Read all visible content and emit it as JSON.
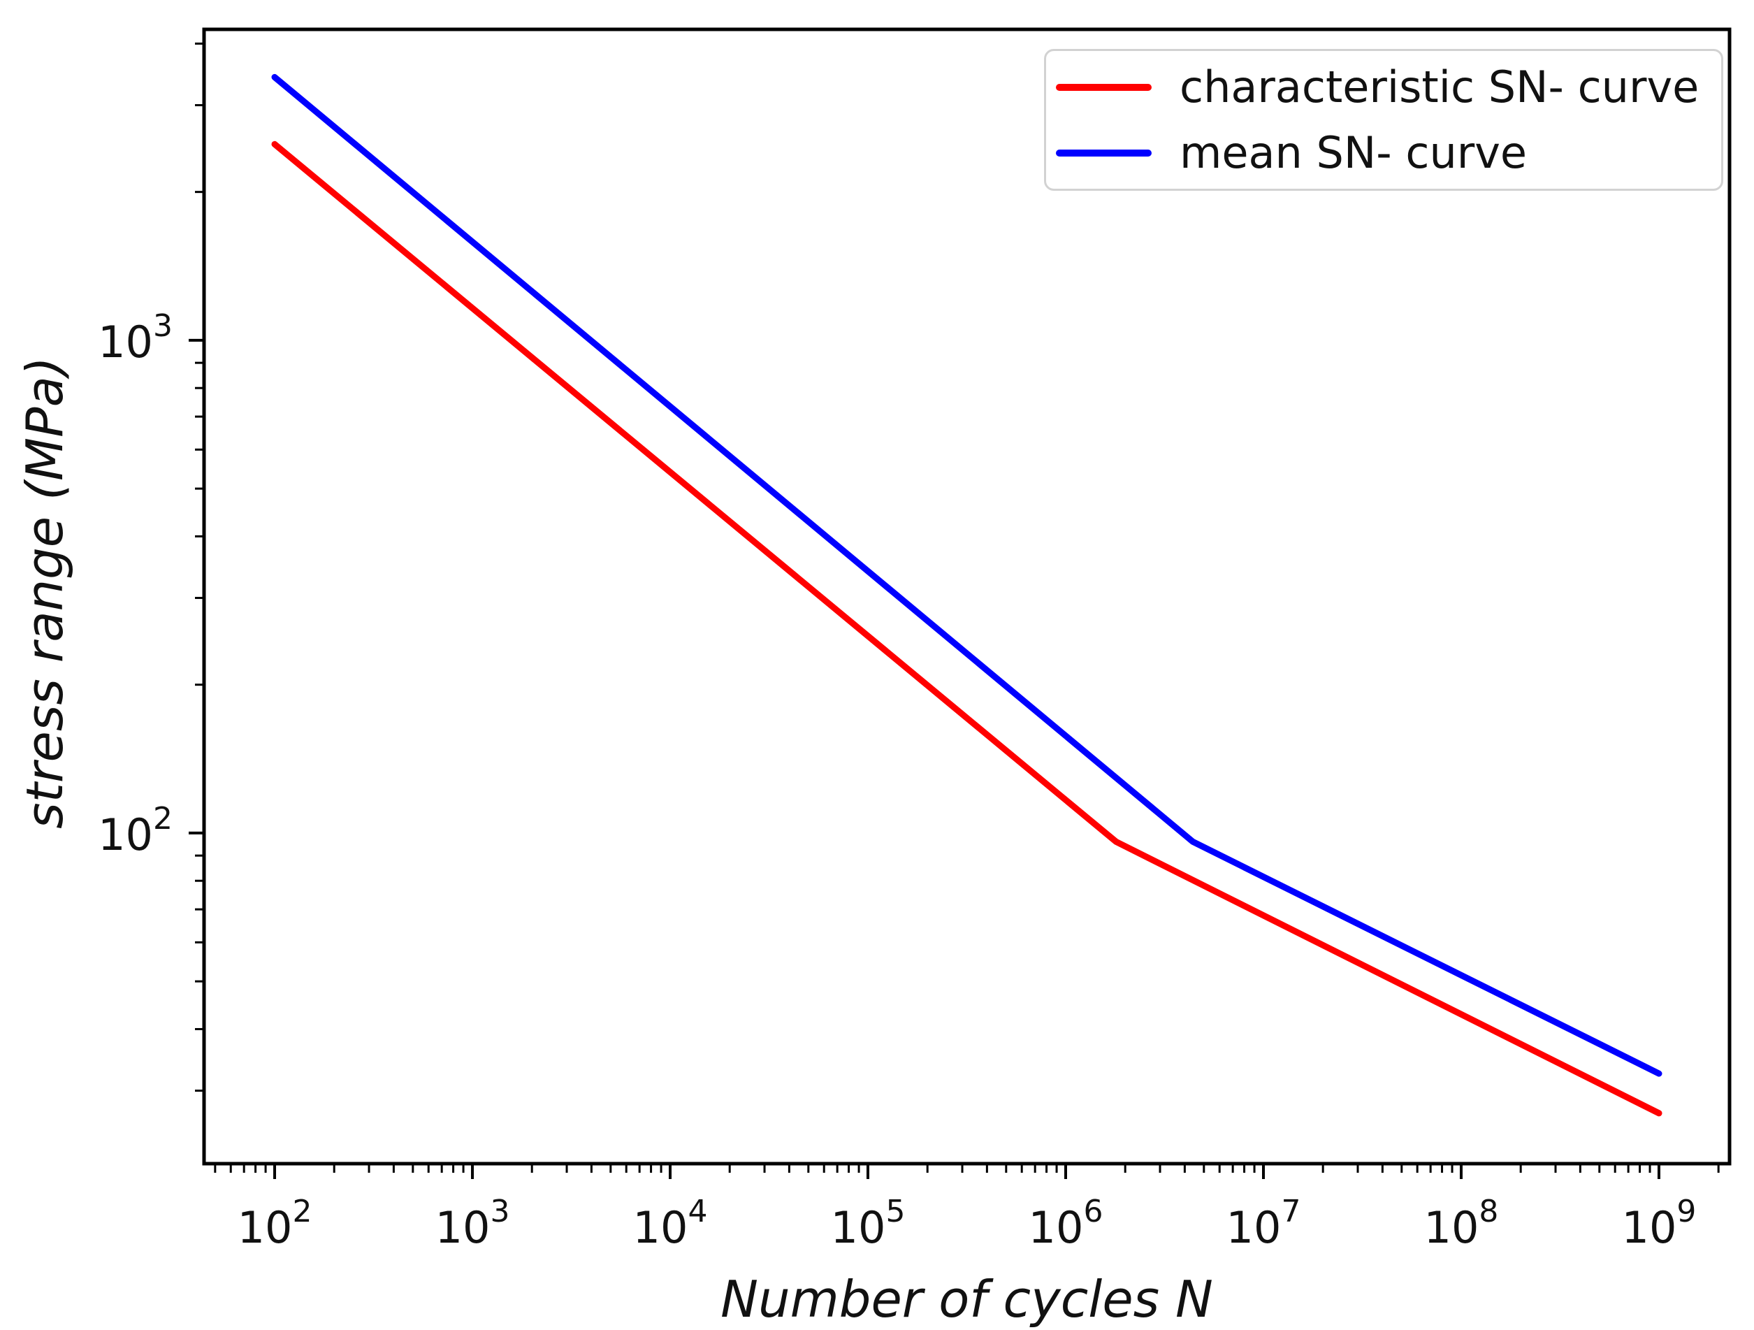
{
  "chart_data": {
    "type": "line",
    "title": "",
    "xlabel": "Number of cycles N",
    "ylabel": "stress range (MPa)",
    "x_scale": "log",
    "y_scale": "log",
    "xlim_log10": [
      1.643,
      9.357
    ],
    "ylim_log10": [
      1.329,
      3.631
    ],
    "x_tick_exponents": [
      2,
      3,
      4,
      5,
      6,
      7,
      8,
      9
    ],
    "x_tick_labels": [
      "10²",
      "10³",
      "10⁴",
      "10⁵",
      "10⁶",
      "10⁷",
      "10⁸",
      "10⁹"
    ],
    "y_tick_exponents": [
      3,
      2
    ],
    "y_tick_labels": [
      "10³",
      "10²"
    ],
    "grid": false,
    "legend_position": "upper right",
    "axis_color": "#000000",
    "text_color": "#111111",
    "background": "#ffffff",
    "series": [
      {
        "name": "characteristic SN- curve",
        "color": "#ff0000",
        "points_N_S": [
          [
            100,
            2500
          ],
          [
            1800000,
            96
          ],
          [
            1000000000,
            27
          ]
        ],
        "segment_slopes_m": [
          3,
          5
        ]
      },
      {
        "name": "mean SN- curve",
        "color": "#0000ff",
        "points_N_S": [
          [
            100,
            3420
          ],
          [
            4400000,
            96
          ],
          [
            1000000000,
            32.5
          ]
        ],
        "segment_slopes_m": [
          3,
          5
        ]
      }
    ]
  }
}
